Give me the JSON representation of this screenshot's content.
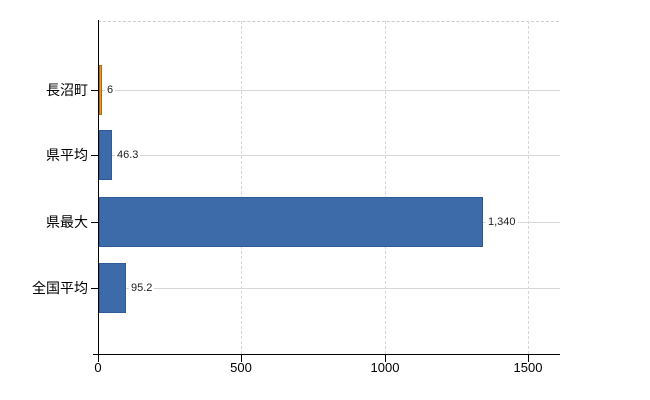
{
  "chart_data": {
    "type": "bar",
    "orientation": "horizontal",
    "title": "",
    "xlabel": "",
    "ylabel": "",
    "categories": [
      "長沼町",
      "県平均",
      "県最大",
      "全国平均"
    ],
    "values": [
      6,
      46.3,
      1340,
      95.2
    ],
    "value_labels": [
      "6",
      "46.3",
      "1,340",
      "95.2"
    ],
    "x_ticks": [
      "0",
      "500",
      "1000",
      "1500"
    ],
    "xlim": [
      0,
      1612
    ],
    "grid": true,
    "legend": false,
    "bar_colors": [
      "#ef9a2a",
      "#3d6ba9",
      "#3d6ba9",
      "#3d6ba9"
    ],
    "bar_border_colors": [
      "#ad690f",
      "#2e5b95",
      "#2e5b95",
      "#2e5b95"
    ],
    "background_color": "#ffffff",
    "axis_color": "#000000",
    "gridline_color": "#d5d9d5"
  }
}
